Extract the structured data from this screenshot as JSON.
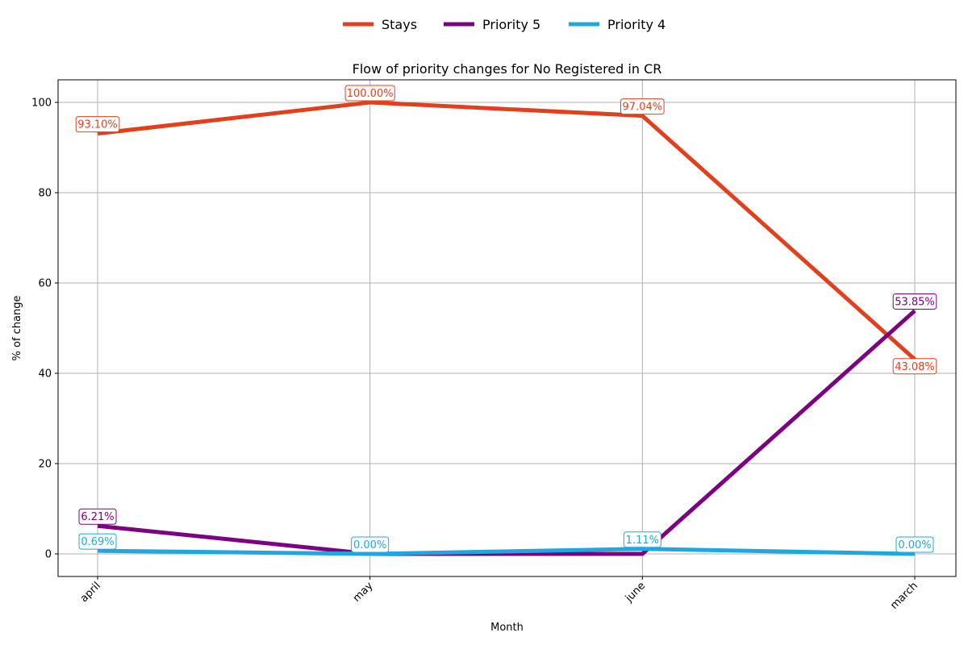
{
  "chart_data": {
    "type": "line",
    "title": "Flow of priority changes for No Registered in CR",
    "xlabel": "Month",
    "ylabel": "% of change",
    "categories": [
      "april",
      "may",
      "june",
      "march"
    ],
    "ylim": [
      -5,
      105
    ],
    "yticks": [
      0,
      20,
      40,
      60,
      80,
      100
    ],
    "grid": true,
    "legend_position": "top-center",
    "series": [
      {
        "name": "Stays",
        "color": "#e2401c",
        "values": [
          93.1,
          100.0,
          97.04,
          43.08
        ],
        "labels": [
          "93.10%",
          "100.00%",
          "97.04%",
          "43.08%"
        ]
      },
      {
        "name": "Priority 5",
        "color": "#7b0082",
        "values": [
          6.21,
          0.0,
          0.0,
          53.85
        ],
        "labels": [
          "6.21%",
          "",
          "",
          "53.85%"
        ]
      },
      {
        "name": "Priority 4",
        "color": "#1fa8e0",
        "values": [
          0.69,
          0.0,
          1.11,
          0.0
        ],
        "labels": [
          "0.69%",
          "0.00%",
          "1.11%",
          "0.00%"
        ]
      }
    ]
  }
}
